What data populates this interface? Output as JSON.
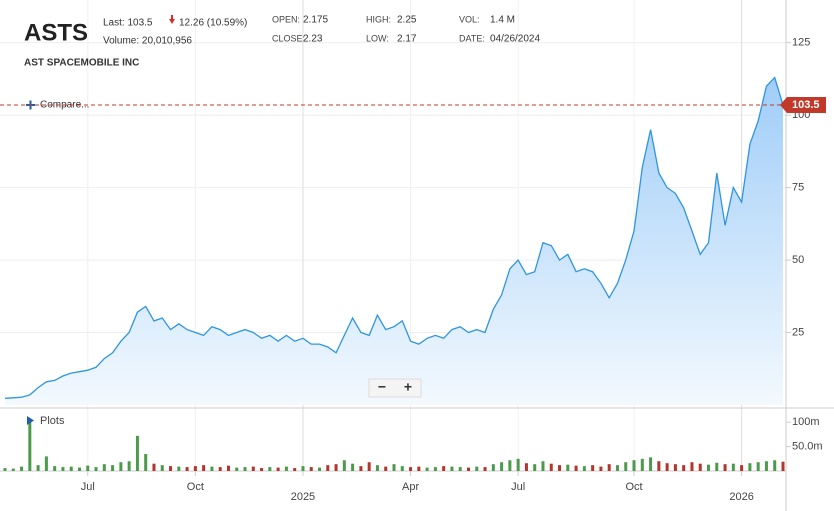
{
  "header": {
    "ticker": "ASTS",
    "last": "Last: 103.5",
    "change": "12.26 (10.59%)",
    "volume": "Volume: 20,010,956",
    "company": "AST SPACEMOBILE INC",
    "open_label": "OPEN:",
    "open": "2.175",
    "close_label": "CLOSE:",
    "close": "2.23",
    "high_label": "HIGH:",
    "high": "2.25",
    "low_label": "LOW:",
    "low": "2.17",
    "vol_label": "VOL:",
    "vol": "1.4 M",
    "date_label": "DATE:",
    "date": "04/26/2024"
  },
  "controls": {
    "compare": "Compare...",
    "plots": "Plots",
    "zoom_out": "−",
    "zoom_in": "+"
  },
  "chart_data": [
    {
      "type": "area",
      "color": "#2f95e0",
      "fill": [
        "#9fcdf8",
        "#f3f9fe"
      ],
      "grid": true,
      "ylim": [
        0,
        138
      ],
      "yticks": [
        25,
        50,
        75,
        100,
        125
      ],
      "last_marker": 103.5,
      "marker_color": "#c0392b",
      "series": [
        {
          "values": [
            2.3,
            2.5,
            2.7,
            3.5,
            6,
            8,
            8.5,
            10,
            11,
            11.5,
            12,
            13,
            16,
            18,
            22,
            25,
            32,
            34,
            29,
            30,
            26,
            28,
            26,
            25,
            24,
            27,
            26,
            24,
            25,
            26,
            25,
            23,
            24,
            22,
            24,
            22,
            23,
            21,
            21,
            20,
            18,
            24,
            30,
            25,
            24,
            31,
            26,
            27,
            29,
            22,
            21,
            23,
            24,
            23,
            26,
            27,
            25,
            26,
            25,
            33,
            38,
            47,
            50,
            45,
            46,
            56,
            55,
            50,
            52,
            46,
            47,
            46,
            42,
            37,
            42,
            50,
            60,
            82,
            95,
            80,
            75,
            73,
            68,
            60,
            52,
            56,
            80,
            62,
            75,
            70,
            90,
            98,
            110,
            113,
            103.5
          ]
        }
      ]
    },
    {
      "type": "bar",
      "up_color": "#4c9a4c",
      "down_color": "#b5342c",
      "ylim": [
        0,
        125
      ],
      "yticks": [
        {
          "value": 100,
          "label": "100m"
        },
        {
          "value": 50,
          "label": "50.0m"
        }
      ],
      "categories": [
        null,
        null,
        null,
        null,
        null,
        null,
        null,
        null,
        null,
        null,
        "Jul",
        null,
        null,
        null,
        null,
        null,
        null,
        null,
        null,
        null,
        null,
        null,
        null,
        "Oct",
        null,
        null,
        null,
        null,
        null,
        null,
        null,
        null,
        null,
        null,
        null,
        null,
        "2025",
        null,
        null,
        null,
        null,
        null,
        null,
        null,
        null,
        null,
        null,
        null,
        null,
        "Apr",
        null,
        null,
        null,
        null,
        null,
        null,
        null,
        null,
        null,
        null,
        null,
        null,
        "Jul",
        null,
        null,
        null,
        null,
        null,
        null,
        null,
        null,
        null,
        null,
        null,
        null,
        null,
        "Oct",
        null,
        null,
        null,
        null,
        null,
        null,
        null,
        null,
        null,
        null,
        null,
        null,
        "2026",
        null,
        null,
        null,
        null,
        null
      ],
      "values": [
        6,
        5,
        9,
        105,
        12,
        30,
        10,
        8,
        9,
        7,
        11,
        8,
        14,
        12,
        18,
        20,
        72,
        35,
        15,
        12,
        10,
        9,
        8,
        10,
        12,
        9,
        8,
        11,
        7,
        8,
        9,
        6,
        8,
        7,
        9,
        6,
        10,
        8,
        7,
        12,
        14,
        22,
        15,
        10,
        18,
        12,
        9,
        14,
        10,
        8,
        9,
        7,
        8,
        10,
        9,
        8,
        7,
        9,
        8,
        14,
        18,
        22,
        25,
        16,
        14,
        20,
        15,
        12,
        13,
        11,
        10,
        12,
        9,
        14,
        12,
        18,
        22,
        25,
        28,
        20,
        16,
        14,
        12,
        18,
        15,
        13,
        17,
        14,
        15,
        12,
        16,
        18,
        20,
        22,
        19
      ]
    }
  ]
}
